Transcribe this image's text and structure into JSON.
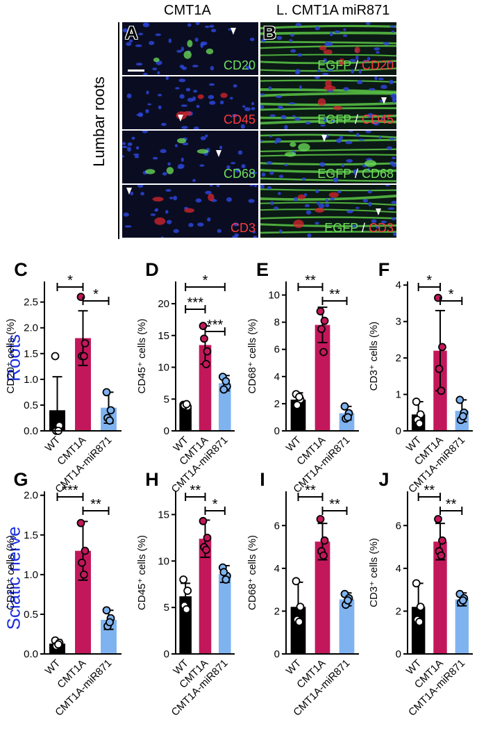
{
  "figure": {
    "col_titles": [
      "CMT1A",
      "L. CMT1A miR871"
    ],
    "vertical_label": "Lumbar roots",
    "micro_panels": [
      {
        "letter": "A",
        "stains": [
          {
            "parts": [
              {
                "text": "CD20",
                "color": "green"
              }
            ]
          },
          {
            "parts": [
              {
                "text": "CD45",
                "color": "red"
              }
            ]
          },
          {
            "parts": [
              {
                "text": "CD68",
                "color": "green"
              }
            ]
          },
          {
            "parts": [
              {
                "text": "CD3",
                "color": "red"
              }
            ]
          }
        ]
      },
      {
        "letter": "B",
        "stains": [
          {
            "parts": [
              {
                "text": "EGFP",
                "color": "green"
              },
              {
                "text": " / ",
                "color": "white"
              },
              {
                "text": "CD20",
                "color": "red"
              }
            ]
          },
          {
            "parts": [
              {
                "text": "EGFP",
                "color": "green"
              },
              {
                "text": " / ",
                "color": "white"
              },
              {
                "text": "CD45",
                "color": "red"
              }
            ]
          },
          {
            "parts": [
              {
                "text": "EGFP",
                "color": "green"
              },
              {
                "text": " / ",
                "color": "white"
              },
              {
                "text": "CD68",
                "color": "green"
              }
            ]
          },
          {
            "parts": [
              {
                "text": "EGFP",
                "color": "green"
              },
              {
                "text": " / ",
                "color": "white"
              },
              {
                "text": "CD3",
                "color": "red"
              }
            ]
          }
        ]
      }
    ],
    "row_labels": [
      "Roots",
      "Sciatic nerve"
    ]
  },
  "colors": {
    "WT": "#000000",
    "CMT1A": "#c2185b",
    "CMT1A-miR871": "#7fb3f0",
    "row_label": "#1a2fe0"
  },
  "chart_data": [
    {
      "panel": "C",
      "type": "bar",
      "ylabel": "CD20⁺ cells (%)",
      "categories": [
        "WT",
        "CMT1A",
        "CMT1A-miR871"
      ],
      "values": [
        0.4,
        1.8,
        0.45
      ],
      "errors": [
        0.65,
        0.53,
        0.3
      ],
      "ylim": [
        0,
        2.9
      ],
      "yticks": [
        0.0,
        0.5,
        1.0,
        1.5,
        2.0,
        2.5
      ],
      "tick_labels": [
        "0.0",
        "0.5",
        "1.0",
        "1.5",
        "2.0",
        "2.5"
      ],
      "points": [
        [
          1.45,
          0.1,
          0.0,
          0.0
        ],
        [
          2.6,
          1.7,
          1.45,
          1.45
        ],
        [
          0.75,
          0.4,
          0.25,
          0.2
        ]
      ],
      "sig": [
        {
          "from": 0,
          "to": 1,
          "label": "*"
        },
        {
          "from": 1,
          "to": 2,
          "label": "*"
        }
      ]
    },
    {
      "panel": "D",
      "type": "bar",
      "ylabel": "CD45⁺ cells (%)",
      "categories": [
        "WT",
        "CMT1A",
        "CMT1A-miR871"
      ],
      "values": [
        4.0,
        13.5,
        7.5
      ],
      "errors": [
        0.3,
        3.0,
        1.2
      ],
      "ylim": [
        0,
        23.5
      ],
      "yticks": [
        0,
        5,
        10,
        15,
        20
      ],
      "tick_labels": [
        "0",
        "5",
        "10",
        "15",
        "20"
      ],
      "points": [
        [
          4.1,
          3.8,
          4.0,
          4.2
        ],
        [
          16.5,
          12.5,
          14.5,
          10.5
        ],
        [
          8.5,
          7.0,
          6.5,
          7.8
        ]
      ],
      "sig": [
        {
          "from": 0,
          "to": 2,
          "label": "*"
        },
        {
          "from": 0,
          "to": 1,
          "label": "***"
        },
        {
          "from": 1,
          "to": 2,
          "label": "***"
        }
      ]
    },
    {
      "panel": "E",
      "type": "bar",
      "ylabel": "CD68⁺ cells (%)",
      "categories": [
        "WT",
        "CMT1A",
        "CMT1A-miR871"
      ],
      "values": [
        2.3,
        7.8,
        1.3
      ],
      "errors": [
        0.5,
        1.3,
        0.5
      ],
      "ylim": [
        0,
        11
      ],
      "yticks": [
        0,
        2,
        4,
        6,
        8,
        10
      ],
      "tick_labels": [
        "0",
        "2",
        "4",
        "6",
        "8",
        "10"
      ],
      "points": [
        [
          2.7,
          2.3,
          1.9,
          2.5
        ],
        [
          8.8,
          8.1,
          7.5,
          5.8
        ],
        [
          1.8,
          1.3,
          0.9,
          1.0
        ]
      ],
      "sig": [
        {
          "from": 0,
          "to": 1,
          "label": "**"
        },
        {
          "from": 1,
          "to": 2,
          "label": "**"
        }
      ]
    },
    {
      "panel": "F",
      "type": "bar",
      "ylabel": "CD3⁺ cells (%)",
      "categories": [
        "WT",
        "CMT1A",
        "CMT1A-miR871"
      ],
      "values": [
        0.45,
        2.2,
        0.55
      ],
      "errors": [
        0.35,
        1.1,
        0.3
      ],
      "ylim": [
        0,
        4.1
      ],
      "yticks": [
        0,
        1,
        2,
        3,
        4
      ],
      "tick_labels": [
        "0",
        "1",
        "2",
        "3",
        "4"
      ],
      "points": [
        [
          0.8,
          0.45,
          0.3,
          0.2
        ],
        [
          3.65,
          2.3,
          1.7,
          1.1
        ],
        [
          0.85,
          0.5,
          0.3,
          0.4
        ]
      ],
      "sig": [
        {
          "from": 0,
          "to": 1,
          "label": "*"
        },
        {
          "from": 1,
          "to": 2,
          "label": "*"
        }
      ]
    },
    {
      "panel": "G",
      "type": "bar",
      "ylabel": "CD20⁺ cells (%)",
      "categories": [
        "WT",
        "CMT1A",
        "CMT1A-miR871"
      ],
      "values": [
        0.13,
        1.3,
        0.43
      ],
      "errors": [
        0.05,
        0.37,
        0.12
      ],
      "ylim": [
        0,
        2.05
      ],
      "yticks": [
        0.0,
        0.5,
        1.0,
        1.5,
        2.0
      ],
      "tick_labels": [
        "0.0",
        "0.5",
        "1.0",
        "1.5",
        "2.0"
      ],
      "points": [
        [
          0.17,
          0.14,
          0.1,
          0.12
        ],
        [
          1.65,
          1.3,
          1.15,
          1.0
        ],
        [
          0.55,
          0.45,
          0.35,
          0.4
        ]
      ],
      "sig": [
        {
          "from": 0,
          "to": 1,
          "label": "***"
        },
        {
          "from": 1,
          "to": 2,
          "label": "**"
        }
      ]
    },
    {
      "panel": "H",
      "type": "bar",
      "ylabel": "CD45⁺ cells (%)",
      "categories": [
        "WT",
        "CMT1A",
        "CMT1A-miR871"
      ],
      "values": [
        6.2,
        12.4,
        8.6
      ],
      "errors": [
        1.4,
        2.0,
        0.9
      ],
      "ylim": [
        0,
        17.5
      ],
      "yticks": [
        0,
        5,
        10,
        15
      ],
      "tick_labels": [
        "0",
        "5",
        "10",
        "15"
      ],
      "points": [
        [
          8.0,
          6.8,
          5.2,
          4.8
        ],
        [
          14.3,
          12.5,
          11.5,
          11.2
        ],
        [
          9.3,
          8.4,
          8.8,
          8.0
        ]
      ],
      "sig": [
        {
          "from": 0,
          "to": 1,
          "label": "**"
        },
        {
          "from": 1,
          "to": 2,
          "label": "*"
        }
      ]
    },
    {
      "panel": "I",
      "type": "bar",
      "ylabel": "CD68⁺ cells (%)",
      "categories": [
        "WT",
        "CMT1A",
        "CMT1A-miR871"
      ],
      "values": [
        2.2,
        5.25,
        2.55
      ],
      "errors": [
        1.15,
        0.85,
        0.3
      ],
      "ylim": [
        0,
        7.6
      ],
      "yticks": [
        0,
        2,
        4,
        6
      ],
      "tick_labels": [
        "0",
        "2",
        "4",
        "6"
      ],
      "points": [
        [
          3.4,
          2.2,
          1.6,
          1.5
        ],
        [
          6.3,
          5.3,
          4.8,
          4.6
        ],
        [
          2.8,
          2.6,
          2.3,
          2.5
        ]
      ],
      "sig": [
        {
          "from": 0,
          "to": 1,
          "label": "**"
        },
        {
          "from": 1,
          "to": 2,
          "label": "**"
        }
      ]
    },
    {
      "panel": "J",
      "type": "bar",
      "ylabel": "CD3⁺ cells (%)",
      "categories": [
        "WT",
        "CMT1A",
        "CMT1A-miR871"
      ],
      "values": [
        2.2,
        5.25,
        2.55
      ],
      "errors": [
        1.1,
        0.85,
        0.3
      ],
      "ylim": [
        0,
        7.6
      ],
      "yticks": [
        0,
        2,
        4,
        6
      ],
      "tick_labels": [
        "0",
        "2",
        "4",
        "6"
      ],
      "points": [
        [
          3.3,
          2.2,
          1.6,
          1.5
        ],
        [
          6.3,
          5.3,
          4.8,
          4.6
        ],
        [
          2.8,
          2.6,
          2.4,
          2.5
        ]
      ],
      "sig": [
        {
          "from": 0,
          "to": 1,
          "label": "**"
        },
        {
          "from": 1,
          "to": 2,
          "label": "**"
        }
      ]
    }
  ]
}
